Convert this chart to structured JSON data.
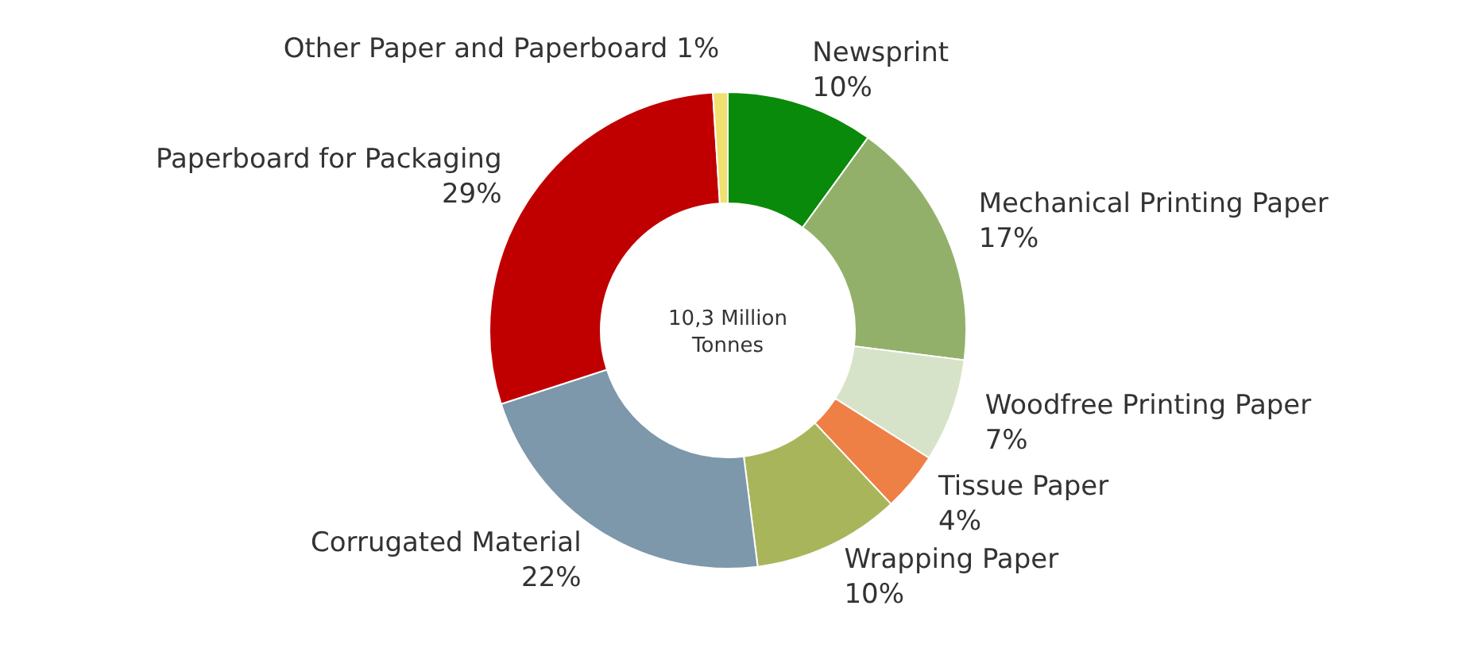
{
  "chart_data": {
    "type": "donut",
    "categories": [
      "Newsprint",
      "Mechanical Printing Paper",
      "Woodfree Printing Paper",
      "Tissue Paper",
      "Wrapping Paper",
      "Corrugated Material",
      "Paperboard for Packaging",
      "Other Paper and Paperboard"
    ],
    "values": [
      10,
      17,
      7,
      4,
      10,
      22,
      29,
      1
    ],
    "value_labels": [
      "10%",
      "17%",
      "7%",
      "4%",
      "10%",
      "22%",
      "29%",
      "1%"
    ],
    "colors": [
      "#0a8a0a",
      "#92b06a",
      "#d6e3c8",
      "#ee7f45",
      "#a9b55a",
      "#7d97ab",
      "#c00000",
      "#f0e070"
    ],
    "annotations": [
      "10,3 Million Tonnes"
    ]
  }
}
